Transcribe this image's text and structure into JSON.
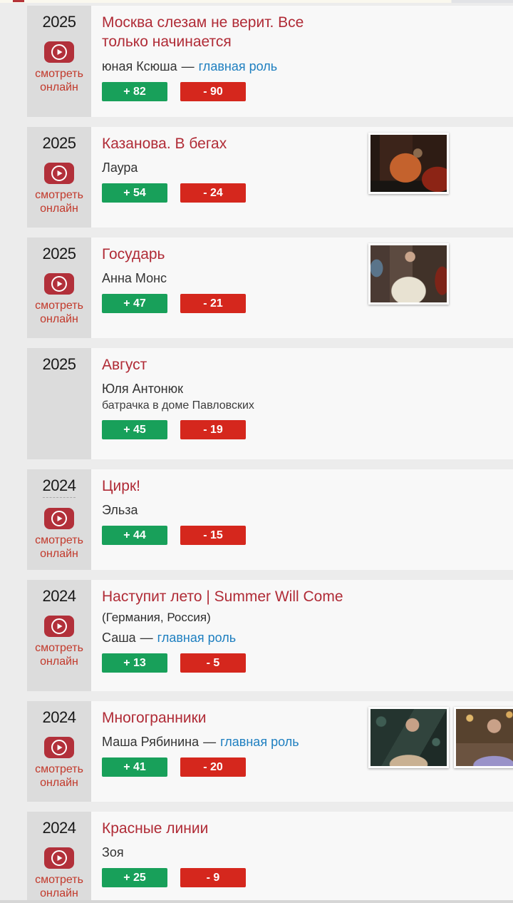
{
  "labels": {
    "watch_online": "смотреть онлайн",
    "role_separator": "—"
  },
  "colors": {
    "title_red": "#b02b36",
    "watch_red": "#c2392b",
    "link_blue": "#1e7fc0",
    "vote_green": "#18a05a",
    "vote_red": "#d5271d",
    "year_box_bg": "#dcdcdc",
    "row_bg": "#f8f8f8",
    "page_bg": "#ececec"
  },
  "icons": {
    "play_badge": "play-icon"
  },
  "films": [
    {
      "year": "2025",
      "title": "Москва слезам не верит. Все только начинается",
      "role": "юная Ксюша",
      "role_link": "главная роль",
      "votes_up": "+ 82",
      "votes_down": "- 90",
      "watch": true
    },
    {
      "year": "2025",
      "title": "Казанова. В бегах",
      "role": "Лаура",
      "votes_up": "+ 54",
      "votes_down": "- 24",
      "watch": true,
      "thumbs": [
        "kazanova"
      ]
    },
    {
      "year": "2025",
      "title": "Государь",
      "role": "Анна Монс",
      "votes_up": "+ 47",
      "votes_down": "- 21",
      "watch": true,
      "thumbs": [
        "gosudar"
      ]
    },
    {
      "year": "2025",
      "title": "Август",
      "role": "Юля Антонюк",
      "role_line2": "батрачка в доме Павловских",
      "votes_up": "+ 45",
      "votes_down": "- 19",
      "watch": false
    },
    {
      "year": "2024",
      "title": "Цирк!",
      "role": "Эльза",
      "votes_up": "+ 44",
      "votes_down": "- 15",
      "watch": true,
      "year_underline": true
    },
    {
      "year": "2024",
      "title": "Наступит лето | Summer Will Come",
      "country": "(Германия, Россия)",
      "role": "Саша",
      "role_link": "главная роль",
      "votes_up": "+ 13",
      "votes_down": "- 5",
      "watch": true
    },
    {
      "year": "2024",
      "title": "Многогранники",
      "role": "Маша Рябинина",
      "role_link": "главная роль",
      "votes_up": "+ 41",
      "votes_down": "- 20",
      "watch": true,
      "thumbs": [
        "poly1",
        "poly2"
      ]
    },
    {
      "year": "2024",
      "title": "Красные линии",
      "role": "Зоя",
      "votes_up": "+ 25",
      "votes_down": "- 9",
      "watch": true
    }
  ]
}
